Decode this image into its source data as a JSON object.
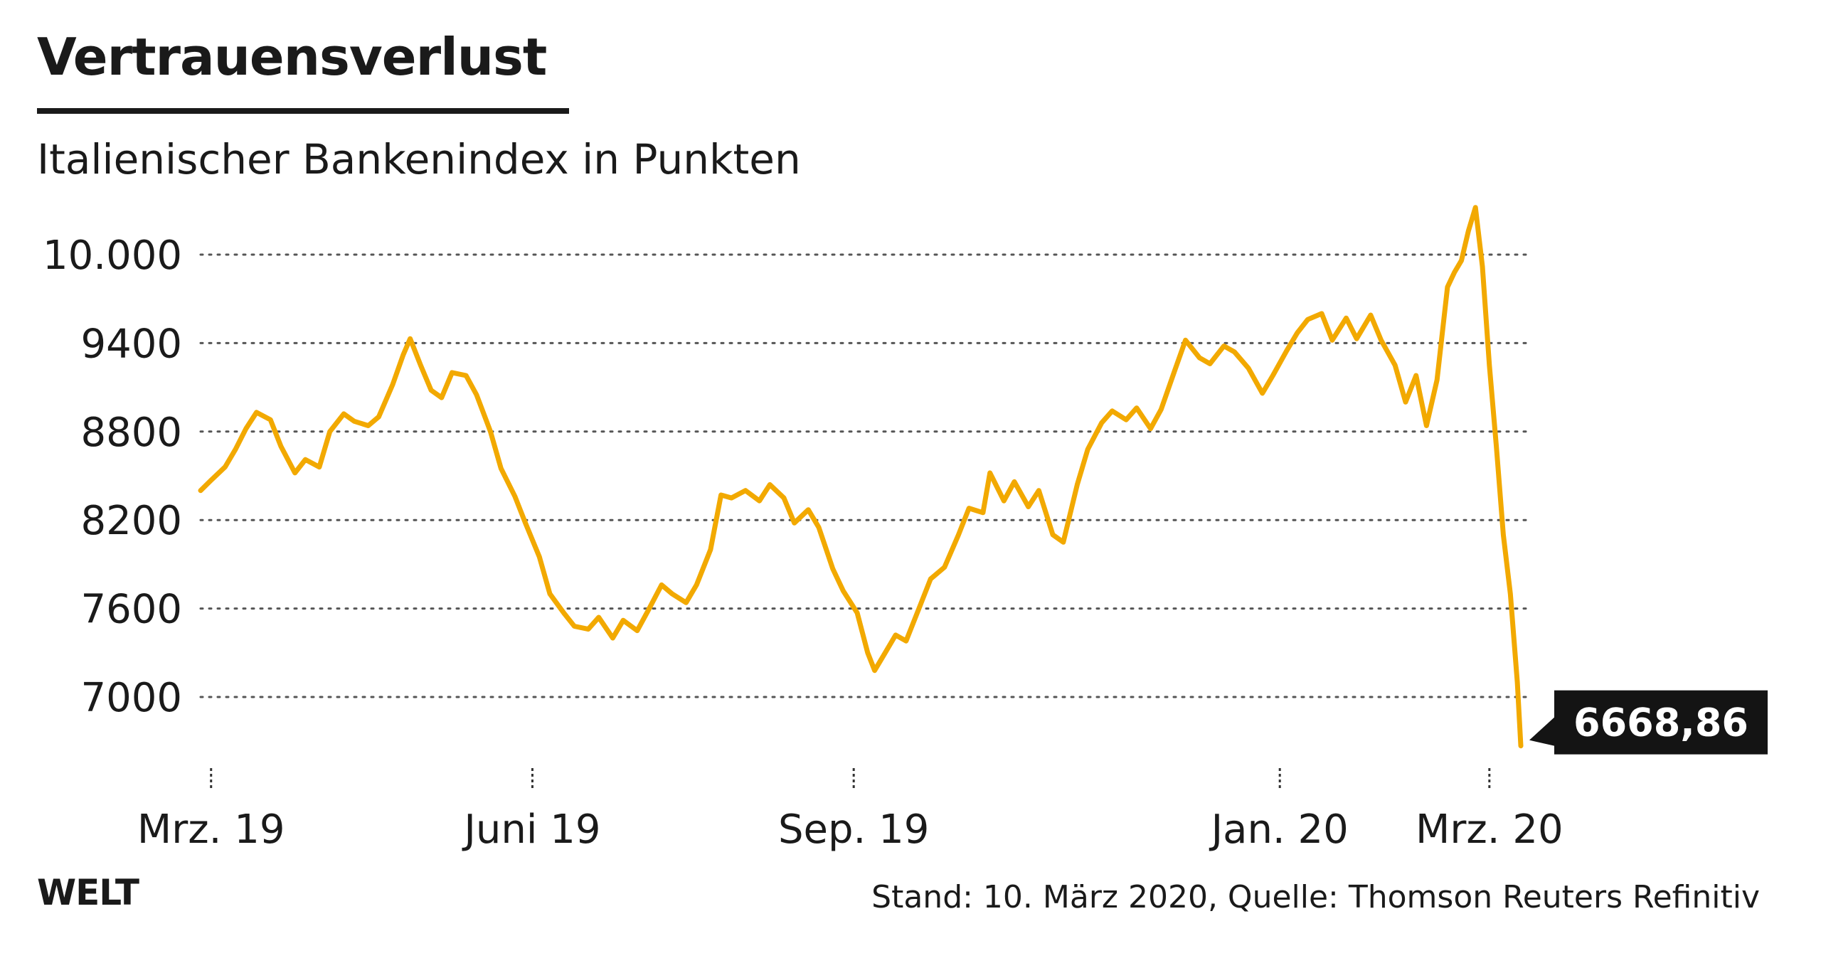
{
  "header": {
    "title": "Vertrauensverlust",
    "subtitle": "Italienischer Bankenindex in Punkten"
  },
  "footer": {
    "brand": "WELT",
    "source": "Stand: 10. März 2020, Quelle: Thomson Reuters Refinitiv"
  },
  "colors": {
    "line": "#f2a900",
    "grid": "#555555",
    "label_box": "#141414"
  },
  "chart_data": {
    "type": "line",
    "title": "Vertrauensverlust",
    "subtitle": "Italienischer Bankenindex in Punkten",
    "ylim": [
      6550,
      10400
    ],
    "y_ticks": [
      10000,
      9400,
      8800,
      8200,
      7600,
      7000
    ],
    "y_tick_labels": [
      "10.000",
      "9400",
      "8800",
      "8200",
      "7600",
      "7000"
    ],
    "grid": "horizontal dotted",
    "x_ticks": [
      {
        "date": "2019-03-01",
        "label": "Mrz. 19"
      },
      {
        "date": "2019-06-01",
        "label": "Juni 19"
      },
      {
        "date": "2019-09-01",
        "label": "Sep. 19"
      },
      {
        "date": "2020-01-01",
        "label": "Jan. 20"
      },
      {
        "date": "2020-03-01",
        "label": "Mrz. 20"
      }
    ],
    "end_label": "6668,86",
    "series": [
      {
        "points": [
          [
            "2019-02-26",
            8400
          ],
          [
            "2019-03-01",
            8470
          ],
          [
            "2019-03-05",
            8560
          ],
          [
            "2019-03-08",
            8680
          ],
          [
            "2019-03-11",
            8820
          ],
          [
            "2019-03-14",
            8930
          ],
          [
            "2019-03-18",
            8880
          ],
          [
            "2019-03-21",
            8700
          ],
          [
            "2019-03-25",
            8520
          ],
          [
            "2019-03-28",
            8610
          ],
          [
            "2019-04-01",
            8560
          ],
          [
            "2019-04-04",
            8800
          ],
          [
            "2019-04-08",
            8920
          ],
          [
            "2019-04-11",
            8870
          ],
          [
            "2019-04-15",
            8840
          ],
          [
            "2019-04-18",
            8900
          ],
          [
            "2019-04-22",
            9120
          ],
          [
            "2019-04-25",
            9320
          ],
          [
            "2019-04-27",
            9430
          ],
          [
            "2019-04-30",
            9250
          ],
          [
            "2019-05-03",
            9080
          ],
          [
            "2019-05-06",
            9030
          ],
          [
            "2019-05-09",
            9200
          ],
          [
            "2019-05-13",
            9180
          ],
          [
            "2019-05-16",
            9050
          ],
          [
            "2019-05-20",
            8800
          ],
          [
            "2019-05-23",
            8550
          ],
          [
            "2019-05-27",
            8360
          ],
          [
            "2019-05-30",
            8180
          ],
          [
            "2019-06-03",
            7950
          ],
          [
            "2019-06-06",
            7700
          ],
          [
            "2019-06-10",
            7570
          ],
          [
            "2019-06-13",
            7480
          ],
          [
            "2019-06-17",
            7460
          ],
          [
            "2019-06-20",
            7540
          ],
          [
            "2019-06-24",
            7400
          ],
          [
            "2019-06-27",
            7520
          ],
          [
            "2019-07-01",
            7450
          ],
          [
            "2019-07-04",
            7580
          ],
          [
            "2019-07-08",
            7760
          ],
          [
            "2019-07-11",
            7700
          ],
          [
            "2019-07-15",
            7640
          ],
          [
            "2019-07-18",
            7760
          ],
          [
            "2019-07-22",
            8000
          ],
          [
            "2019-07-25",
            8370
          ],
          [
            "2019-07-28",
            8350
          ],
          [
            "2019-08-01",
            8400
          ],
          [
            "2019-08-05",
            8330
          ],
          [
            "2019-08-08",
            8440
          ],
          [
            "2019-08-12",
            8350
          ],
          [
            "2019-08-15",
            8180
          ],
          [
            "2019-08-19",
            8270
          ],
          [
            "2019-08-22",
            8150
          ],
          [
            "2019-08-26",
            7870
          ],
          [
            "2019-08-29",
            7720
          ],
          [
            "2019-09-02",
            7570
          ],
          [
            "2019-09-05",
            7300
          ],
          [
            "2019-09-07",
            7180
          ],
          [
            "2019-09-10",
            7300
          ],
          [
            "2019-09-13",
            7420
          ],
          [
            "2019-09-16",
            7380
          ],
          [
            "2019-09-20",
            7620
          ],
          [
            "2019-09-23",
            7800
          ],
          [
            "2019-09-27",
            7880
          ],
          [
            "2019-10-01",
            8100
          ],
          [
            "2019-10-04",
            8280
          ],
          [
            "2019-10-08",
            8250
          ],
          [
            "2019-10-10",
            8520
          ],
          [
            "2019-10-14",
            8330
          ],
          [
            "2019-10-17",
            8460
          ],
          [
            "2019-10-21",
            8290
          ],
          [
            "2019-10-24",
            8400
          ],
          [
            "2019-10-28",
            8100
          ],
          [
            "2019-10-31",
            8050
          ],
          [
            "2019-11-04",
            8440
          ],
          [
            "2019-11-07",
            8680
          ],
          [
            "2019-11-11",
            8860
          ],
          [
            "2019-11-14",
            8940
          ],
          [
            "2019-11-18",
            8880
          ],
          [
            "2019-11-21",
            8960
          ],
          [
            "2019-11-25",
            8820
          ],
          [
            "2019-11-28",
            8950
          ],
          [
            "2019-12-02",
            9220
          ],
          [
            "2019-12-05",
            9420
          ],
          [
            "2019-12-09",
            9300
          ],
          [
            "2019-12-12",
            9260
          ],
          [
            "2019-12-16",
            9380
          ],
          [
            "2019-12-19",
            9340
          ],
          [
            "2019-12-23",
            9230
          ],
          [
            "2019-12-27",
            9060
          ],
          [
            "2019-12-30",
            9180
          ],
          [
            "2020-01-03",
            9350
          ],
          [
            "2020-01-06",
            9470
          ],
          [
            "2020-01-09",
            9560
          ],
          [
            "2020-01-13",
            9600
          ],
          [
            "2020-01-16",
            9420
          ],
          [
            "2020-01-20",
            9570
          ],
          [
            "2020-01-23",
            9430
          ],
          [
            "2020-01-27",
            9590
          ],
          [
            "2020-01-30",
            9420
          ],
          [
            "2020-02-03",
            9250
          ],
          [
            "2020-02-06",
            9000
          ],
          [
            "2020-02-09",
            9180
          ],
          [
            "2020-02-12",
            8840
          ],
          [
            "2020-02-15",
            9150
          ],
          [
            "2020-02-18",
            9780
          ],
          [
            "2020-02-20",
            9880
          ],
          [
            "2020-02-22",
            9960
          ],
          [
            "2020-02-24",
            10160
          ],
          [
            "2020-02-26",
            10320
          ],
          [
            "2020-02-28",
            9920
          ],
          [
            "2020-03-01",
            9250
          ],
          [
            "2020-03-03",
            8700
          ],
          [
            "2020-03-05",
            8100
          ],
          [
            "2020-03-07",
            7700
          ],
          [
            "2020-03-09",
            7100
          ],
          [
            "2020-03-10",
            6668.86
          ]
        ]
      }
    ]
  }
}
